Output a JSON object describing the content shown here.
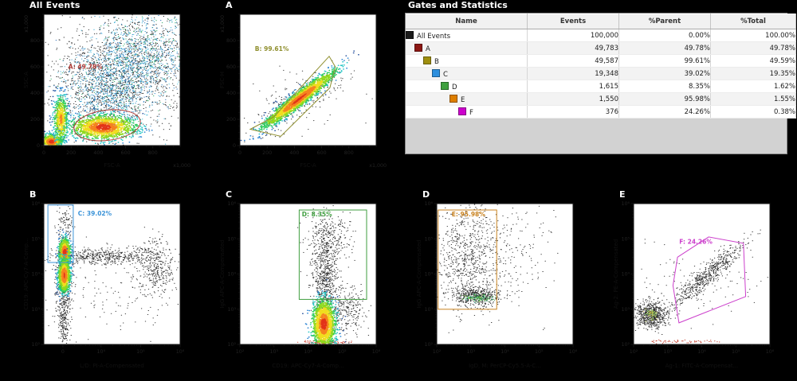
{
  "page": {
    "background": "#000000"
  },
  "stats_panel": {
    "title": "Gates and Statistics",
    "columns": [
      "Name",
      "Events",
      "%Parent",
      "%Total"
    ],
    "rows": [
      {
        "name": "All Events",
        "swatch": "#1c1c1c",
        "indent": 0,
        "events": "100,000",
        "parent": "0.00%",
        "total": "100.00%"
      },
      {
        "name": "A",
        "swatch": "#8c1713",
        "indent": 1,
        "events": "49,783",
        "parent": "49.78%",
        "total": "49.78%"
      },
      {
        "name": "B",
        "swatch": "#9f8f0f",
        "indent": 2,
        "events": "49,587",
        "parent": "99.61%",
        "total": "49.59%"
      },
      {
        "name": "C",
        "swatch": "#2d8fde",
        "indent": 3,
        "events": "19,348",
        "parent": "39.02%",
        "total": "19.35%"
      },
      {
        "name": "D",
        "swatch": "#3fa03f",
        "indent": 4,
        "events": "1,615",
        "parent": "8.35%",
        "total": "1.62%"
      },
      {
        "name": "E",
        "swatch": "#dd7e00",
        "indent": 5,
        "events": "1,550",
        "parent": "95.98%",
        "total": "1.55%"
      },
      {
        "name": "F",
        "swatch": "#cc00cc",
        "indent": 6,
        "events": "376",
        "parent": "24.26%",
        "total": "0.38%"
      }
    ]
  },
  "chart_data": [
    {
      "id": "all-events",
      "title": "All Events",
      "type": "scatter",
      "x": {
        "label": "FSC-A",
        "mult": "x1,000",
        "scale": "lin",
        "ticks": [
          {
            "f": 0,
            "t": "0"
          },
          {
            "f": 0.2,
            "t": "200"
          },
          {
            "f": 0.4,
            "t": "400"
          },
          {
            "f": 0.6,
            "t": "600"
          },
          {
            "f": 0.8,
            "t": "800"
          }
        ]
      },
      "y": {
        "label": "SSC-A",
        "mult": "x1,000",
        "scale": "lin",
        "ticks": [
          {
            "f": 0,
            "t": "0"
          },
          {
            "f": 0.2,
            "t": "200"
          },
          {
            "f": 0.4,
            "t": "400"
          },
          {
            "f": 0.6,
            "t": "600"
          },
          {
            "f": 0.8,
            "t": "800"
          }
        ]
      },
      "gates": [
        {
          "type": "ellipse",
          "cx": 0.465,
          "cy": 0.155,
          "rx": 0.245,
          "ry": 0.115,
          "rot": -7,
          "color": "#b03a34",
          "label": "A: 49.78%",
          "label_pos": [
            0.18,
            0.585
          ]
        }
      ],
      "clusters": [
        {
          "style": "dots",
          "cx": 0.45,
          "cy": 0.45,
          "sx": 0.4,
          "sy": 0.33,
          "n": 420,
          "colors": [
            "#343434"
          ]
        },
        {
          "style": "dots",
          "cx": 0.6,
          "cy": 0.58,
          "sx": 0.3,
          "sy": 0.2,
          "rot": 33,
          "n": 1500,
          "colors": [
            "#2e2e2e",
            "#3a3a3a",
            "#272727"
          ]
        },
        {
          "style": "dots",
          "cx": 0.63,
          "cy": 0.6,
          "sx": 0.25,
          "sy": 0.165,
          "rot": 33,
          "n": 1600,
          "colors": [
            "#35aed6",
            "#2d84c6",
            "#4cc4e0",
            "#2a6ab2",
            "#309dce",
            "#2fae66"
          ]
        },
        {
          "style": "dots",
          "cx": 0.48,
          "cy": 0.33,
          "sx": 0.13,
          "sy": 0.12,
          "n": 420,
          "colors": [
            "#35aed6",
            "#303030",
            "#2d84c6"
          ]
        },
        {
          "style": "jet",
          "cx": 0.055,
          "cy": 0.03,
          "sx": 0.038,
          "sy": 0.026,
          "n": 750
        },
        {
          "style": "jet",
          "cx": 0.125,
          "cy": 0.2,
          "sx": 0.028,
          "sy": 0.095,
          "n": 620,
          "off": 1
        },
        {
          "style": "jet",
          "cx": 0.435,
          "cy": 0.14,
          "sx": 0.115,
          "sy": 0.046,
          "n": 1500
        }
      ]
    },
    {
      "id": "a",
      "title": "A",
      "type": "scatter",
      "x": {
        "label": "FSC-A",
        "mult": "x1,000",
        "scale": "lin",
        "ticks": [
          {
            "f": 0,
            "t": "0"
          },
          {
            "f": 0.2,
            "t": "200"
          },
          {
            "f": 0.4,
            "t": "400"
          },
          {
            "f": 0.6,
            "t": "600"
          },
          {
            "f": 0.8,
            "t": "800"
          }
        ]
      },
      "y": {
        "label": "FSC-H",
        "mult": "x1,000",
        "scale": "lin",
        "ticks": [
          {
            "f": 0,
            "t": "0"
          },
          {
            "f": 0.2,
            "t": "200"
          },
          {
            "f": 0.4,
            "t": "400"
          },
          {
            "f": 0.6,
            "t": "600"
          },
          {
            "f": 0.8,
            "t": "800"
          }
        ]
      },
      "gates": [
        {
          "type": "polygon",
          "points": [
            [
              0.076,
              0.124
            ],
            [
              0.3,
              0.071
            ],
            [
              0.66,
              0.44
            ],
            [
              0.7,
              0.6
            ],
            [
              0.655,
              0.68
            ],
            [
              0.25,
              0.22
            ]
          ],
          "color": "#8f8f2e",
          "label": "B: 99.61%",
          "label_pos": [
            0.11,
            0.72
          ]
        }
      ],
      "clusters": [
        {
          "style": "dots",
          "cx": 0.43,
          "cy": 0.34,
          "sx": 0.19,
          "sy": 0.06,
          "rot": 39,
          "n": 260,
          "colors": [
            "#2c2c2c"
          ]
        },
        {
          "style": "dots",
          "cx": 0.46,
          "cy": 0.33,
          "sx": 0.21,
          "sy": 0.13,
          "n": 70,
          "colors": [
            "#333333"
          ]
        },
        {
          "style": "jet",
          "cx": 0.435,
          "cy": 0.355,
          "sx": 0.165,
          "sy": 0.024,
          "rot": 39,
          "n": 2100
        }
      ]
    },
    {
      "id": "b",
      "title": "B",
      "type": "scatter",
      "x": {
        "label": "L/D: PI-A-Compensated",
        "scale": "biex",
        "ticks": [
          {
            "f": 0.14,
            "t": "0"
          },
          {
            "f": 0.42,
            "t": "10⁴"
          },
          {
            "f": 0.71,
            "t": "10⁵"
          },
          {
            "f": 1,
            "t": "10⁶"
          }
        ]
      },
      "y": {
        "label": "CD19: APC-Cy7-A-Comp...",
        "scale": "log",
        "ticks": [
          {
            "f": 0,
            "t": "10²"
          },
          {
            "f": 0.25,
            "t": "10³"
          },
          {
            "f": 0.5,
            "t": "10⁴"
          },
          {
            "f": 0.75,
            "t": "10⁵"
          },
          {
            "f": 1,
            "t": "10⁶"
          }
        ]
      },
      "gates": [
        {
          "type": "rect",
          "x0": 0.03,
          "y0": 0.582,
          "x1": 0.216,
          "y1": 0.99,
          "color": "#3b93d8",
          "label": "C: 39.02%",
          "label_pos": [
            0.25,
            0.915
          ]
        }
      ],
      "clusters": [
        {
          "style": "dots",
          "cx": 0.15,
          "cy": 0.52,
          "sx": 0.032,
          "sy": 0.16,
          "n": 420,
          "colors": [
            "#2b2b2b"
          ]
        },
        {
          "style": "dots",
          "cx": 0.145,
          "cy": 0.18,
          "sx": 0.024,
          "sy": 0.1,
          "n": 210,
          "colors": [
            "#2b2b2b"
          ]
        },
        {
          "style": "dots",
          "cx": 0.45,
          "cy": 0.625,
          "sx": 0.17,
          "sy": 0.03,
          "n": 460,
          "colors": [
            "#2b2b2b",
            "#3b3b3b"
          ]
        },
        {
          "style": "dots",
          "cx": 0.82,
          "cy": 0.56,
          "sx": 0.085,
          "sy": 0.1,
          "n": 380,
          "colors": [
            "#2f2f2f"
          ]
        },
        {
          "style": "dots",
          "cx": 0.5,
          "cy": 0.33,
          "sx": 0.28,
          "sy": 0.18,
          "n": 140,
          "colors": [
            "#3a3a3a"
          ]
        },
        {
          "style": "dots",
          "cx": 0.15,
          "cy": 0.9,
          "sx": 0.03,
          "sy": 0.06,
          "n": 60,
          "colors": [
            "#2b2b2b"
          ]
        },
        {
          "style": "jet",
          "cx": 0.152,
          "cy": 0.655,
          "sx": 0.02,
          "sy": 0.048,
          "n": 950
        },
        {
          "style": "jet",
          "cx": 0.149,
          "cy": 0.49,
          "sx": 0.021,
          "sy": 0.058,
          "n": 1150
        }
      ]
    },
    {
      "id": "c",
      "title": "C",
      "type": "scatter",
      "x": {
        "label": "CD19: APC-Cy7-A-Comp...",
        "scale": "log",
        "ticks": [
          {
            "f": 0,
            "t": "10²"
          },
          {
            "f": 0.25,
            "t": "10³"
          },
          {
            "f": 0.5,
            "t": "10⁴"
          },
          {
            "f": 0.75,
            "t": "10⁵"
          },
          {
            "f": 1,
            "t": "10⁶"
          }
        ]
      },
      "y": {
        "label": "IgG APC-A-Compensated",
        "scale": "log",
        "ticks": [
          {
            "f": 0,
            "t": "10²"
          },
          {
            "f": 0.25,
            "t": "10³"
          },
          {
            "f": 0.5,
            "t": "10⁴"
          },
          {
            "f": 0.75,
            "t": "10⁵"
          },
          {
            "f": 1,
            "t": "10⁶"
          }
        ]
      },
      "gates": [
        {
          "type": "rect",
          "x0": 0.435,
          "y0": 0.32,
          "x1": 0.93,
          "y1": 0.955,
          "color": "#3f9e3f",
          "label": "D: 8.35%",
          "label_pos": [
            0.455,
            0.91
          ]
        }
      ],
      "clusters": [
        {
          "style": "dots",
          "cx": 0.625,
          "cy": 0.47,
          "sx": 0.05,
          "sy": 0.17,
          "n": 640,
          "colors": [
            "#2b2b2b"
          ]
        },
        {
          "style": "dots",
          "cx": 0.655,
          "cy": 0.76,
          "sx": 0.085,
          "sy": 0.11,
          "n": 280,
          "colors": [
            "#2f2f2f"
          ]
        },
        {
          "style": "dots",
          "cx": 0.79,
          "cy": 0.24,
          "sx": 0.07,
          "sy": 0.095,
          "n": 260,
          "colors": [
            "#2f2f2f"
          ]
        },
        {
          "style": "dots",
          "cx": 0.62,
          "cy": 0.015,
          "sx": 0.09,
          "sy": 0.008,
          "n": 110,
          "colors": [
            "#c23420",
            "#d8442e"
          ]
        },
        {
          "style": "jet",
          "cx": 0.615,
          "cy": 0.145,
          "sx": 0.042,
          "sy": 0.085,
          "n": 1700
        }
      ]
    },
    {
      "id": "d",
      "title": "D",
      "type": "scatter",
      "x": {
        "label": "IgD, M: PerCP-Cy5.5-A-C...",
        "scale": "log",
        "ticks": [
          {
            "f": 0,
            "t": "10²"
          },
          {
            "f": 0.25,
            "t": "10³"
          },
          {
            "f": 0.5,
            "t": "10⁴"
          },
          {
            "f": 0.75,
            "t": "10⁵"
          },
          {
            "f": 1,
            "t": "10⁶"
          }
        ]
      },
      "y": {
        "label": "IgG APC-A-Compensated",
        "scale": "log",
        "ticks": [
          {
            "f": 0,
            "t": "10²"
          },
          {
            "f": 0.25,
            "t": "10³"
          },
          {
            "f": 0.5,
            "t": "10⁴"
          },
          {
            "f": 0.75,
            "t": "10⁵"
          },
          {
            "f": 1,
            "t": "10⁶"
          }
        ]
      },
      "gates": [
        {
          "type": "rect",
          "x0": 0.01,
          "y0": 0.25,
          "x1": 0.44,
          "y1": 0.955,
          "color": "#c9821e",
          "label": "E: 95.98%",
          "label_pos": [
            0.11,
            0.91
          ]
        }
      ],
      "clusters": [
        {
          "style": "dots",
          "cx": 0.22,
          "cy": 0.6,
          "sx": 0.12,
          "sy": 0.18,
          "n": 760,
          "colors": [
            "#2b2b2b",
            "#383838"
          ]
        },
        {
          "style": "dots",
          "cx": 0.3,
          "cy": 0.345,
          "sx": 0.095,
          "sy": 0.032,
          "n": 430,
          "colors": [
            "#2b2b2b"
          ]
        },
        {
          "style": "dots",
          "cx": 0.3,
          "cy": 0.335,
          "sx": 0.055,
          "sy": 0.014,
          "n": 120,
          "colors": [
            "#2fae4e",
            "#37b89e",
            "#57c84e",
            "#8fd44f",
            "#2f8f3e"
          ]
        },
        {
          "style": "dots",
          "cx": 0.6,
          "cy": 0.6,
          "sx": 0.13,
          "sy": 0.17,
          "n": 110,
          "colors": [
            "#333333"
          ]
        },
        {
          "style": "dots",
          "cx": 0.45,
          "cy": 0.8,
          "sx": 0.22,
          "sy": 0.1,
          "n": 70,
          "colors": [
            "#333333"
          ]
        }
      ]
    },
    {
      "id": "e",
      "title": "E",
      "type": "scatter",
      "x": {
        "label": "Ag-1: FITC-A-Compensat...",
        "scale": "log",
        "ticks": [
          {
            "f": 0,
            "t": "10²"
          },
          {
            "f": 0.25,
            "t": "10³"
          },
          {
            "f": 0.5,
            "t": "10⁴"
          },
          {
            "f": 0.75,
            "t": "10⁵"
          },
          {
            "f": 1,
            "t": "10⁶"
          }
        ]
      },
      "y": {
        "label": "Ag-2: PE-A-Compensated",
        "scale": "log",
        "ticks": [
          {
            "f": 0,
            "t": "10²"
          },
          {
            "f": 0.25,
            "t": "10³"
          },
          {
            "f": 0.5,
            "t": "10⁴"
          },
          {
            "f": 0.75,
            "t": "10⁵"
          },
          {
            "f": 1,
            "t": "10⁶"
          }
        ]
      },
      "gates": [
        {
          "type": "polygon",
          "points": [
            [
              0.322,
              0.62
            ],
            [
              0.55,
              0.763
            ],
            [
              0.806,
              0.718
            ],
            [
              0.822,
              0.34
            ],
            [
              0.333,
              0.153
            ],
            [
              0.289,
              0.418
            ]
          ],
          "color": "#cc3fcc",
          "label": "F: 24.26%",
          "label_pos": [
            0.335,
            0.715
          ]
        }
      ],
      "clusters": [
        {
          "style": "dots",
          "cx": 0.13,
          "cy": 0.21,
          "sx": 0.058,
          "sy": 0.05,
          "n": 680,
          "colors": [
            "#2b2b2b",
            "#383838"
          ]
        },
        {
          "style": "dots",
          "cx": 0.13,
          "cy": 0.215,
          "sx": 0.022,
          "sy": 0.018,
          "n": 70,
          "colors": [
            "#9fd44f",
            "#cfe05f",
            "#6fc84e",
            "#d8b84f"
          ]
        },
        {
          "style": "dots",
          "cx": 0.54,
          "cy": 0.49,
          "sx": 0.17,
          "sy": 0.032,
          "rot": 41,
          "n": 560,
          "colors": [
            "#2b2b2b"
          ]
        },
        {
          "style": "dots",
          "cx": 0.52,
          "cy": 0.46,
          "sx": 0.22,
          "sy": 0.12,
          "n": 120,
          "colors": [
            "#3a3a3a"
          ]
        },
        {
          "style": "dots",
          "cx": 0.28,
          "cy": 0.02,
          "sx": 0.14,
          "sy": 0.008,
          "n": 50,
          "colors": [
            "#c23420"
          ]
        }
      ]
    }
  ]
}
